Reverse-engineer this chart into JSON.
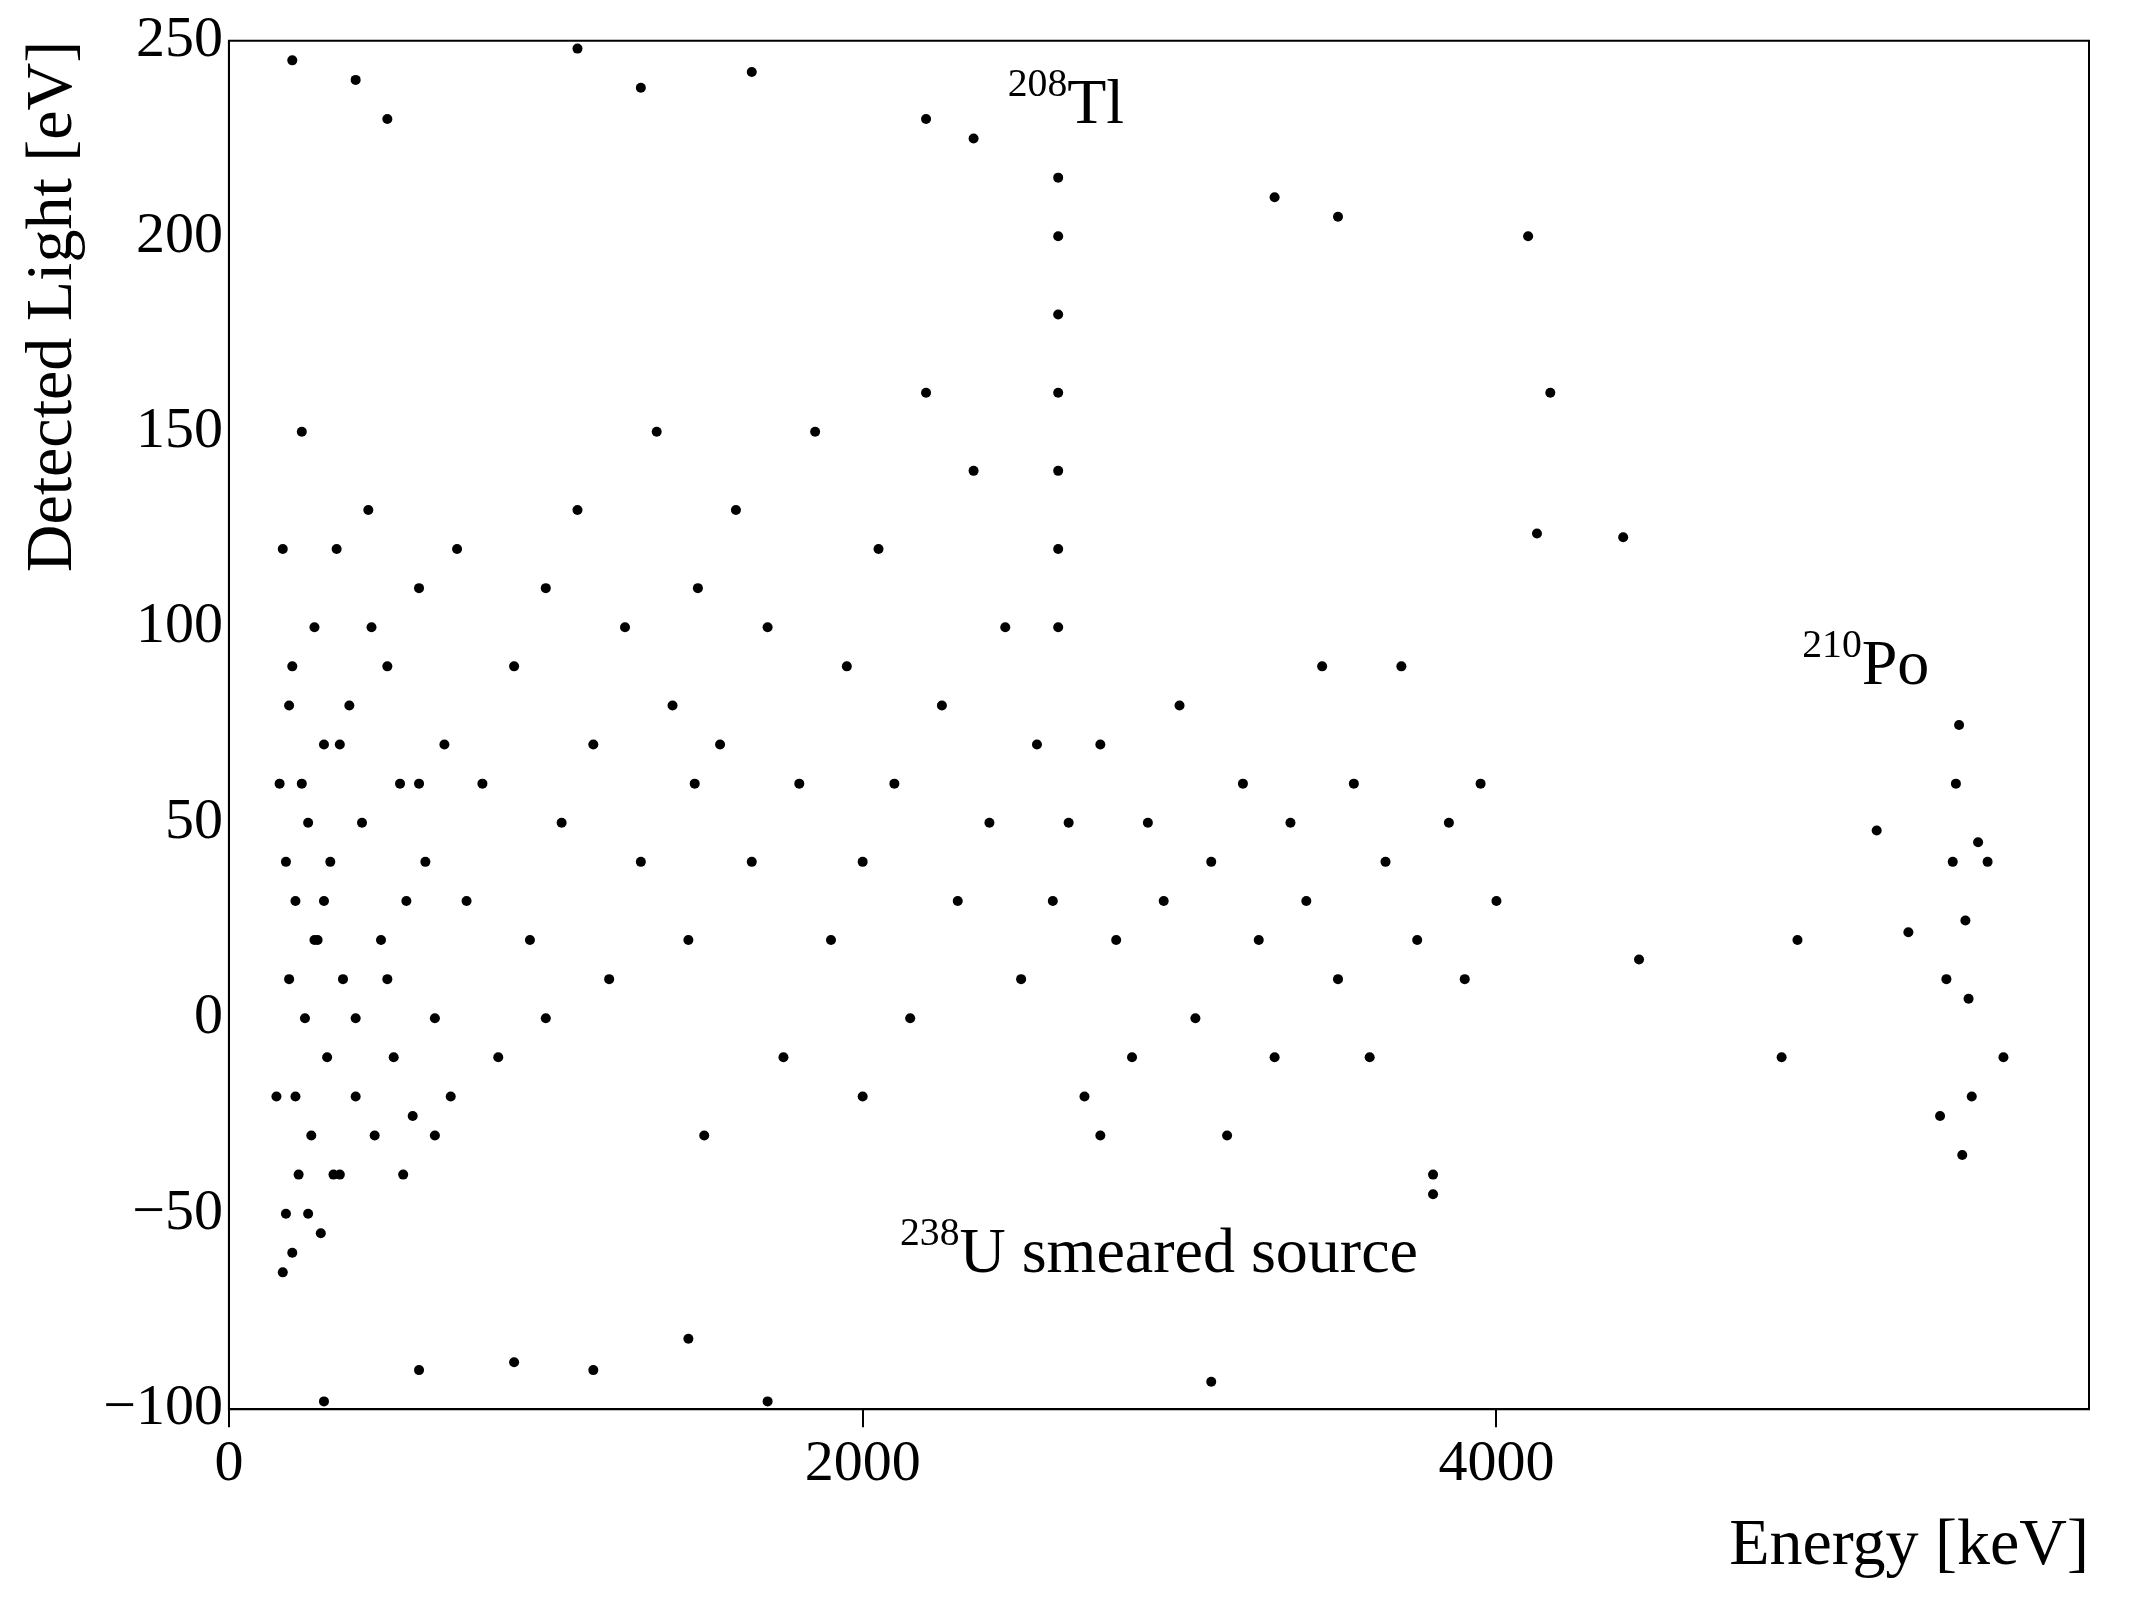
{
  "chart_data": {
    "type": "scatter",
    "xlabel": "Energy [keV]",
    "ylabel": "Detected Light [eV]",
    "xlim": [
      0,
      5870
    ],
    "ylim": [
      -100,
      250
    ],
    "xticks": [
      0,
      2000,
      4000
    ],
    "yticks": [
      {
        "value": -100,
        "label": "−100"
      },
      {
        "value": -50,
        "label": "−50"
      },
      0,
      50,
      100,
      150,
      200,
      250
    ],
    "grid": false,
    "legend": false,
    "marker": "circle",
    "annotations": [
      "$^{208}$Tl",
      "$^{210}$Po",
      "$^{238}$U smeared source"
    ],
    "series": [
      {
        "color": "#000000",
        "x": [
          150,
          160,
          170,
          180,
          190,
          200,
          200,
          210,
          220,
          230,
          240,
          250,
          260,
          270,
          280,
          290,
          300,
          310,
          320,
          340,
          350,
          360,
          380,
          400,
          420,
          440,
          460,
          480,
          500,
          520,
          540,
          560,
          580,
          600,
          620,
          650,
          680,
          700,
          720,
          750,
          170,
          180,
          190,
          210,
          230,
          250,
          270,
          300,
          330,
          350,
          400,
          450,
          500,
          550,
          600,
          650,
          800,
          850,
          900,
          950,
          1000,
          1000,
          1050,
          1100,
          1150,
          1200,
          1250,
          1300,
          1350,
          1400,
          1450,
          1470,
          1480,
          1500,
          1550,
          1600,
          1650,
          1700,
          1750,
          1800,
          1850,
          1900,
          1950,
          2000,
          2050,
          2100,
          2150,
          2200,
          2250,
          2300,
          2350,
          2400,
          2450,
          2500,
          2550,
          2600,
          2617,
          2617,
          2617,
          2617,
          2617,
          2617,
          2617,
          2650,
          2700,
          2750,
          2800,
          2850,
          2900,
          2950,
          3000,
          3050,
          3100,
          3150,
          3200,
          3250,
          3300,
          3350,
          3400,
          3450,
          3500,
          3550,
          3600,
          3650,
          3700,
          3750,
          3800,
          3850,
          3900,
          3950,
          4000,
          4100,
          4170,
          4128,
          3300,
          3500,
          4400,
          4450,
          4900,
          4950,
          5200,
          5300,
          5400,
          5420,
          5440,
          5450,
          5460,
          5470,
          5480,
          5490,
          5500,
          5520,
          5550,
          5600,
          200,
          400,
          1100,
          1650,
          500,
          1300,
          2200,
          2350,
          1150,
          1450,
          1700,
          300,
          3100,
          3800,
          900,
          600,
          2000,
          2750
        ],
        "values": [
          -20,
          60,
          120,
          -50,
          10,
          -60,
          90,
          30,
          -40,
          150,
          0,
          50,
          -30,
          100,
          20,
          -55,
          70,
          -10,
          40,
          120,
          -40,
          10,
          80,
          -20,
          50,
          130,
          -30,
          20,
          90,
          -10,
          60,
          30,
          -25,
          110,
          40,
          0,
          70,
          -20,
          120,
          30,
          -65,
          40,
          80,
          -20,
          60,
          -50,
          20,
          30,
          -40,
          70,
          0,
          100,
          10,
          -40,
          60,
          -30,
          60,
          -10,
          90,
          20,
          110,
          0,
          50,
          130,
          70,
          10,
          100,
          40,
          150,
          80,
          20,
          60,
          110,
          -30,
          70,
          130,
          40,
          100,
          -10,
          60,
          150,
          20,
          90,
          40,
          120,
          60,
          0,
          160,
          80,
          30,
          140,
          50,
          100,
          10,
          70,
          30,
          100,
          120,
          140,
          160,
          180,
          200,
          215,
          50,
          -20,
          70,
          20,
          -10,
          50,
          30,
          80,
          0,
          40,
          -30,
          60,
          20,
          -10,
          50,
          30,
          90,
          10,
          60,
          -10,
          40,
          90,
          20,
          -40,
          50,
          10,
          60,
          30,
          200,
          160,
          124,
          210,
          205,
          123,
          15,
          -10,
          20,
          48,
          22,
          -25,
          10,
          40,
          60,
          75,
          -35,
          25,
          5,
          -20,
          45,
          40,
          -10,
          245,
          240,
          248,
          242,
          230,
          238,
          230,
          225,
          -90,
          -82,
          -98,
          -98,
          -93,
          -45,
          -88,
          -90,
          -20,
          -30
        ]
      }
    ]
  }
}
